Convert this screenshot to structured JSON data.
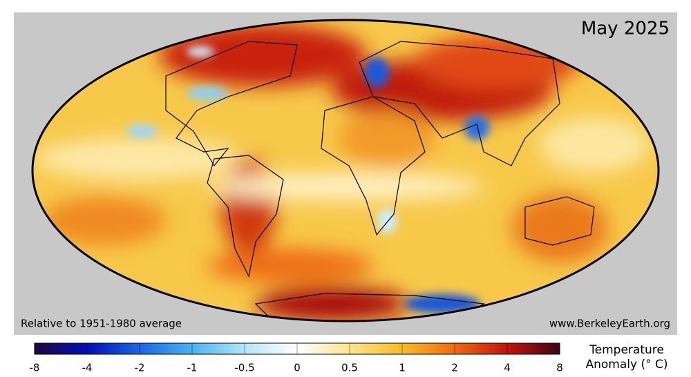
{
  "title": "May 2025",
  "note_left": "Relative to 1951-1980 average",
  "note_right": "www.BerkeleyEarth.org",
  "colorbar": {
    "ticks": [
      -8,
      -4,
      -2,
      -1,
      -0.5,
      0,
      0.5,
      1,
      2,
      4,
      8
    ],
    "colors": [
      "#1c0840",
      "#0010b8",
      "#1a66e6",
      "#48b4f0",
      "#b4e6fa",
      "#ffffff",
      "#ffe68a",
      "#f8bc24",
      "#f06a10",
      "#c4140c",
      "#3e0612"
    ],
    "title_lines": [
      "Temperature",
      "Anomaly (° C)"
    ]
  }
}
